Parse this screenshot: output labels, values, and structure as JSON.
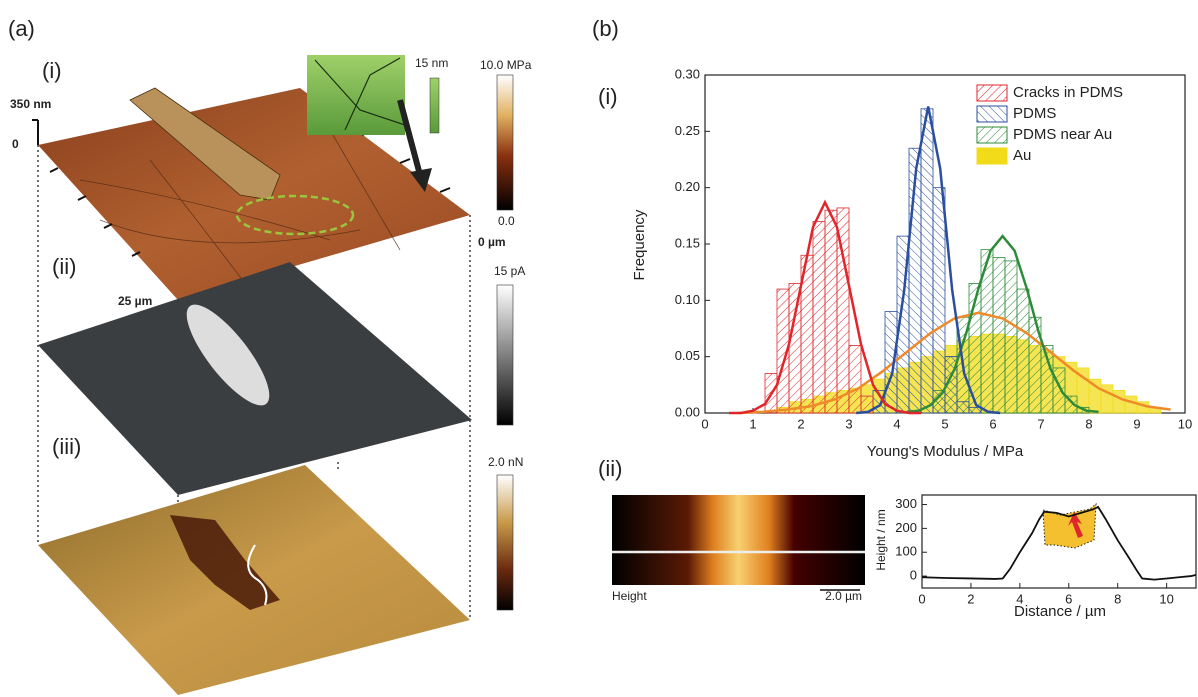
{
  "panel_a": {
    "label": "(a)",
    "sub_labels": [
      "(i)",
      "(ii)",
      "(iii)"
    ],
    "z_top": "350 nm",
    "z_zero": "0",
    "y_end": "25 µm",
    "x_zero": "0 µm",
    "inset_scale": "15 nm",
    "colorbars": [
      {
        "max": "10.0 MPa",
        "min": "0.0"
      },
      {
        "max": "15 pA"
      },
      {
        "max": "2.0 nN"
      }
    ]
  },
  "panel_b_label": "(b)",
  "chart_data": [
    {
      "type": "histogram",
      "panel_label": "(i)",
      "xlabel": "Young's Modulus / MPa",
      "ylabel": "Frequency",
      "xlim": [
        0,
        10
      ],
      "xticks": [
        0,
        1,
        2,
        3,
        4,
        5,
        6,
        7,
        8,
        9,
        10
      ],
      "ylim": [
        0,
        0.3
      ],
      "yticks": [
        {
          "value": 0,
          "label": "0.00"
        },
        {
          "value": 0.05,
          "label": "0.05"
        },
        {
          "value": 0.1,
          "label": "0.10"
        },
        {
          "value": 0.15,
          "label": "0.15"
        },
        {
          "value": 0.2,
          "label": "0.20"
        },
        {
          "value": 0.25,
          "label": "0.25"
        },
        {
          "value": 0.3,
          "label": "0.30"
        }
      ],
      "legend": "upper right",
      "series": [
        {
          "name": "Cracks in PDMS",
          "color": "#e0262b",
          "hatch": "forward",
          "bins": [
            1.25,
            1.5,
            1.75,
            2,
            2.25,
            2.5,
            2.75,
            3,
            3.25,
            3.5
          ],
          "values": [
            0.035,
            0.11,
            0.115,
            0.14,
            0.17,
            0.18,
            0.182,
            0.06,
            0.015
          ],
          "fit": {
            "x": [
              0.5,
              0.75,
              1,
              1.25,
              1.5,
              1.75,
              2,
              2.25,
              2.5,
              2.75,
              3,
              3.25,
              3.5,
              3.75,
              4,
              4.25,
              4.5
            ],
            "values": [
              0,
              0,
              0.002,
              0.008,
              0.025,
              0.061,
              0.113,
              0.165,
              0.187,
              0.165,
              0.113,
              0.061,
              0.025,
              0.008,
              0.002,
              0,
              0
            ]
          }
        },
        {
          "name": "PDMS",
          "color": "#2b4f9e",
          "hatch": "back",
          "bins": [
            3.5,
            3.75,
            4,
            4.25,
            4.5,
            4.75,
            5,
            5.25,
            5.5,
            5.75
          ],
          "values": [
            0.02,
            0.09,
            0.157,
            0.235,
            0.27,
            0.2,
            0.05,
            0.01,
            0.005
          ],
          "fit": {
            "x": [
              3.15,
              3.4,
              3.65,
              3.9,
              4.15,
              4.4,
              4.65,
              4.9,
              5.15,
              5.4,
              5.65,
              5.9,
              6.15
            ],
            "values": [
              0,
              0.001,
              0.007,
              0.035,
              0.109,
              0.217,
              0.272,
              0.217,
              0.109,
              0.035,
              0.007,
              0.001,
              0
            ]
          }
        },
        {
          "name": "PDMS near Au",
          "color": "#2e8b3a",
          "hatch": "forward",
          "bins": [
            4.75,
            5,
            5.25,
            5.5,
            5.75,
            6,
            6.25,
            6.5,
            6.75,
            7,
            7.25,
            7.5,
            7.75,
            8
          ],
          "values": [
            0.02,
            0.05,
            0.085,
            0.115,
            0.145,
            0.138,
            0.135,
            0.11,
            0.085,
            0.06,
            0.04,
            0.015,
            0.005
          ],
          "fit": {
            "x": [
              4.2,
              4.45,
              4.7,
              4.95,
              5.2,
              5.45,
              5.7,
              5.95,
              6.2,
              6.45,
              6.7,
              6.95,
              7.2,
              7.45,
              7.7,
              7.95,
              8.2
            ],
            "values": [
              0.001,
              0.002,
              0.007,
              0.018,
              0.039,
              0.072,
              0.111,
              0.144,
              0.157,
              0.144,
              0.111,
              0.072,
              0.039,
              0.018,
              0.007,
              0.002,
              0.001
            ]
          }
        },
        {
          "name": "Au",
          "color": "#f2dc1a",
          "fit_color": "#ef8a2a",
          "bins": [
            1.5,
            1.75,
            2,
            2.25,
            2.5,
            2.75,
            3,
            3.25,
            3.5,
            3.75,
            4,
            4.25,
            4.5,
            4.75,
            5,
            5.25,
            5.5,
            5.75,
            6,
            6.25,
            6.5,
            6.75,
            7,
            7.25,
            7.5,
            7.75,
            8,
            8.25,
            8.5,
            8.75,
            9,
            9.25,
            9.5
          ],
          "values": [
            0.005,
            0.01,
            0.012,
            0.015,
            0.018,
            0.02,
            0.022,
            0.025,
            0.03,
            0.035,
            0.04,
            0.045,
            0.05,
            0.055,
            0.06,
            0.065,
            0.068,
            0.07,
            0.07,
            0.068,
            0.065,
            0.06,
            0.055,
            0.05,
            0.045,
            0.04,
            0.03,
            0.025,
            0.02,
            0.015,
            0.01,
            0.005
          ],
          "fit": {
            "x": [
              0.7,
              1.2,
              1.7,
              2.2,
              2.7,
              3.2,
              3.7,
              4.2,
              4.7,
              5.2,
              5.7,
              6.2,
              6.7,
              7.2,
              7.7,
              8.2,
              8.7,
              9.2,
              9.7
            ],
            "values": [
              0,
              0.001,
              0.003,
              0.006,
              0.012,
              0.022,
              0.037,
              0.054,
              0.071,
              0.084,
              0.089,
              0.084,
              0.071,
              0.054,
              0.037,
              0.022,
              0.012,
              0.006,
              0.003
            ]
          }
        }
      ]
    },
    {
      "type": "line",
      "panel_label": "(ii)",
      "image_label": "Height",
      "scale_bar": "2.0 µm",
      "xlabel": "Distance / µm",
      "ylabel": "Height / nm",
      "xlim": [
        0,
        11.2
      ],
      "xticks": [
        0,
        2,
        4,
        6,
        8,
        10
      ],
      "ylim": [
        -50,
        340
      ],
      "yticks": [
        0,
        100,
        200,
        300
      ],
      "series": [
        {
          "color": "#111111",
          "x": [
            0,
            1,
            2,
            3,
            3.3,
            3.6,
            4,
            4.5,
            4.8,
            5,
            5.5,
            6,
            6.5,
            7,
            7.2,
            7.5,
            8,
            8.5,
            8.8,
            9,
            9.5,
            10,
            10.5,
            11,
            11.2
          ],
          "values": [
            -5,
            -8,
            -10,
            -12,
            -10,
            30,
            100,
            180,
            240,
            270,
            265,
            250,
            265,
            280,
            290,
            240,
            150,
            70,
            20,
            -10,
            -15,
            -10,
            -5,
            0,
            5
          ]
        }
      ]
    }
  ]
}
